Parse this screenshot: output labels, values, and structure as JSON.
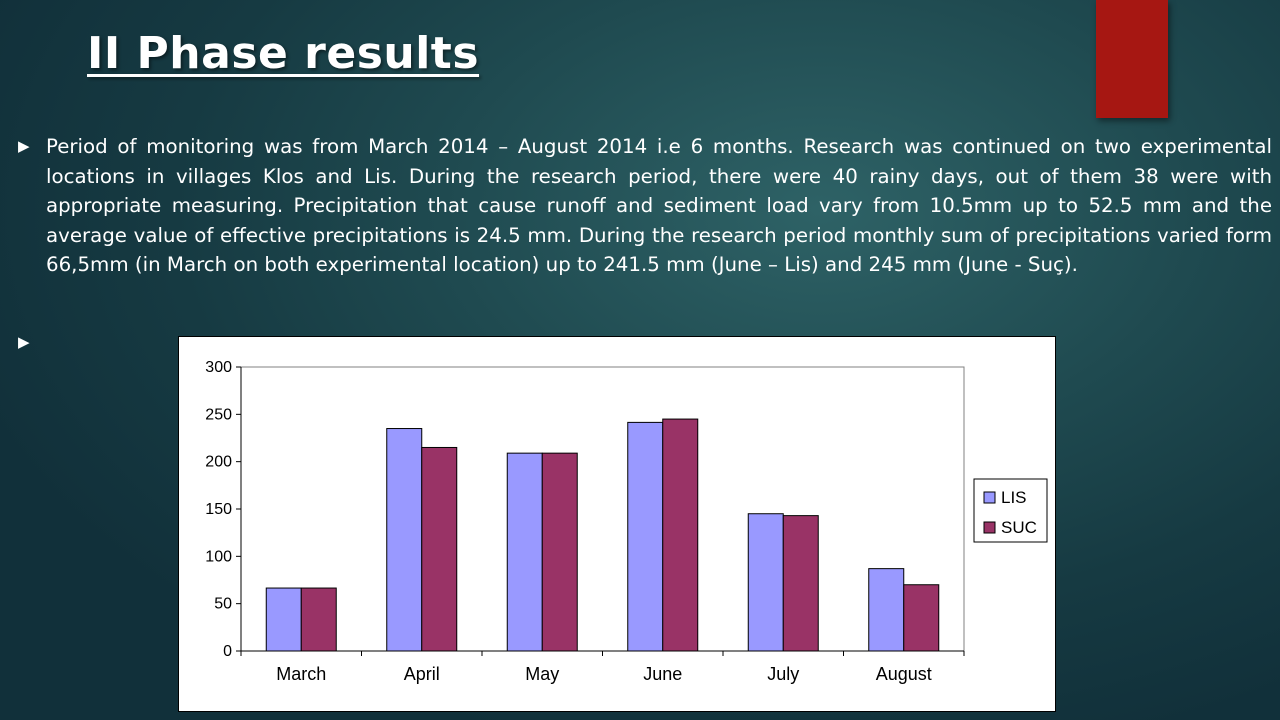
{
  "slide": {
    "title": "II Phase results",
    "bullets": [
      "Period of monitoring was from March 2014 – August 2014 i.e 6 months. Research was continued on two experimental locations in villages Klos and  Lis. During the research period, there were 40 rainy days, out of them 38 were with appropriate measuring. Precipitation that cause runoff and sediment load vary from 10.5mm up to 52.5 mm and the average value of effective precipitations is 24.5 mm. During the research period monthly sum of precipitations varied form 66,5mm (in March on both experimental location) up to 241.5 mm (June – Lis) and 245 mm (June - Suç).",
      ""
    ],
    "bullet_icon": "triangle-right-icon",
    "accent_color": "#a61712"
  },
  "chart_data": {
    "type": "bar",
    "categories": [
      "March",
      "April",
      "May",
      "June",
      "July",
      "August"
    ],
    "series": [
      {
        "name": "LIS",
        "values": [
          66.5,
          235,
          209,
          241.5,
          145,
          87
        ],
        "color": "#9999ff"
      },
      {
        "name": "SUC",
        "values": [
          66.5,
          215,
          209,
          245,
          143,
          70
        ],
        "color": "#993366"
      }
    ],
    "yticks": [
      0,
      50,
      100,
      150,
      200,
      250,
      300
    ],
    "ylim": [
      0,
      300
    ],
    "title": "",
    "xlabel": "",
    "ylabel": "",
    "grid": false,
    "legend_position": "right"
  }
}
